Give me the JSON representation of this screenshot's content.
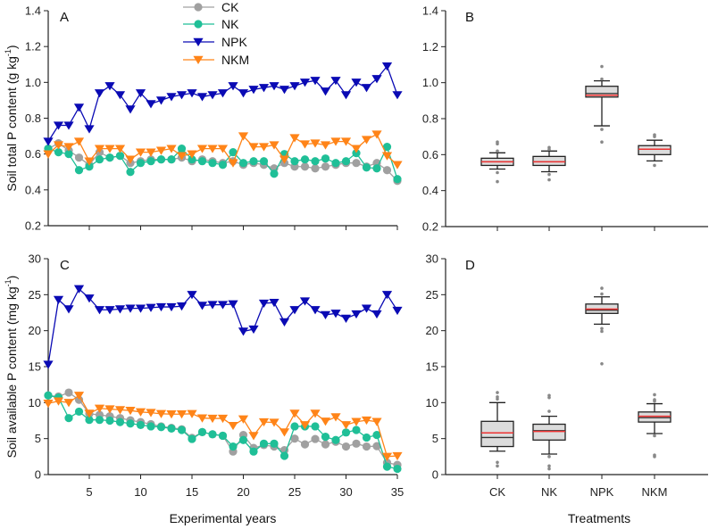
{
  "colors": {
    "CK": "#a0a0a0",
    "NK": "#1fbf97",
    "NPK": "#0a0ab4",
    "NKM": "#ff8418",
    "box_fill": "#dcdcdc",
    "mean_line": "#ee3333",
    "outlier": "#888888"
  },
  "legend": [
    {
      "name": "CK",
      "marker": "circle"
    },
    {
      "name": "NK",
      "marker": "circle"
    },
    {
      "name": "NPK",
      "marker": "triangle-down"
    },
    {
      "name": "NKM",
      "marker": "triangle-down"
    }
  ],
  "shared_labels": {
    "x_left": "Experimental years",
    "x_right": "Treatments"
  },
  "chart_data": [
    {
      "panel": "A",
      "type": "line",
      "ylabel": "Soil total P content (g kg-1)",
      "ylabel_main": "Soil total P content (g kg",
      "ylabel_sup": "-1",
      "ylabel_end": ")",
      "xlabel": "",
      "xlim": [
        1,
        35
      ],
      "ylim": [
        0.2,
        1.4
      ],
      "xticks": [
        5,
        10,
        15,
        20,
        25,
        30,
        35
      ],
      "yticks": [
        0.2,
        0.4,
        0.6,
        0.8,
        1.0,
        1.2,
        1.4
      ],
      "ytick_labels": [
        "0.2",
        "0.4",
        "0.6",
        "0.8",
        "1.0",
        "1.2",
        "1.4"
      ],
      "show_xtick_labels": false,
      "legend_position": "top-center",
      "x": [
        1,
        2,
        3,
        4,
        5,
        6,
        7,
        8,
        9,
        10,
        11,
        12,
        13,
        14,
        15,
        16,
        17,
        18,
        19,
        20,
        21,
        22,
        23,
        24,
        25,
        26,
        27,
        28,
        29,
        30,
        31,
        32,
        33,
        34,
        35
      ],
      "series": [
        {
          "name": "CK",
          "values": [
            0.63,
            0.66,
            0.62,
            0.58,
            0.54,
            0.61,
            0.58,
            0.59,
            0.55,
            0.56,
            0.57,
            0.57,
            0.57,
            0.58,
            0.56,
            0.57,
            0.56,
            0.55,
            0.56,
            0.54,
            0.55,
            0.54,
            0.52,
            0.55,
            0.53,
            0.53,
            0.52,
            0.53,
            0.54,
            0.55,
            0.55,
            0.53,
            0.55,
            0.51,
            0.45
          ]
        },
        {
          "name": "NK",
          "values": [
            0.63,
            0.61,
            0.6,
            0.51,
            0.53,
            0.57,
            0.58,
            0.59,
            0.5,
            0.55,
            0.56,
            0.57,
            0.57,
            0.63,
            0.57,
            0.56,
            0.55,
            0.54,
            0.61,
            0.55,
            0.56,
            0.56,
            0.49,
            0.6,
            0.56,
            0.57,
            0.56,
            0.575,
            0.55,
            0.56,
            0.605,
            0.525,
            0.52,
            0.64,
            0.46
          ]
        },
        {
          "name": "NPK",
          "values": [
            0.67,
            0.76,
            0.76,
            0.86,
            0.74,
            0.94,
            0.98,
            0.93,
            0.85,
            0.94,
            0.88,
            0.9,
            0.92,
            0.93,
            0.94,
            0.92,
            0.93,
            0.94,
            0.98,
            0.94,
            0.96,
            0.97,
            0.98,
            0.96,
            0.98,
            1.0,
            1.01,
            0.95,
            1.01,
            0.93,
            1.0,
            0.97,
            1.02,
            1.09,
            0.93
          ]
        },
        {
          "name": "NKM",
          "values": [
            0.6,
            0.65,
            0.64,
            0.67,
            0.56,
            0.63,
            0.63,
            0.63,
            0.57,
            0.61,
            0.61,
            0.62,
            0.63,
            0.59,
            0.6,
            0.63,
            0.63,
            0.63,
            0.55,
            0.7,
            0.64,
            0.64,
            0.65,
            0.57,
            0.69,
            0.655,
            0.66,
            0.65,
            0.67,
            0.67,
            0.63,
            0.68,
            0.71,
            0.59,
            0.54
          ]
        }
      ]
    },
    {
      "panel": "B",
      "type": "box",
      "ylim": [
        0.2,
        1.4
      ],
      "yticks": [
        0.2,
        0.4,
        0.6,
        0.8,
        1.0,
        1.2,
        1.4
      ],
      "ytick_labels": [
        "0.2",
        "0.4",
        "0.6",
        "0.8",
        "1.0",
        "1.2",
        "1.4"
      ],
      "categories": [
        "CK",
        "NK",
        "NPK",
        "NKM"
      ],
      "show_xtick_labels": false,
      "boxes": [
        {
          "name": "CK",
          "q1": 0.54,
          "q3": 0.58,
          "median": 0.56,
          "mean": 0.56,
          "whisker_low": 0.52,
          "whisker_high": 0.61,
          "outliers": [
            0.67,
            0.66,
            0.62,
            0.5,
            0.45
          ]
        },
        {
          "name": "NK",
          "q1": 0.54,
          "q3": 0.59,
          "median": 0.56,
          "mean": 0.56,
          "whisker_low": 0.505,
          "whisker_high": 0.62,
          "outliers": [
            0.64,
            0.63,
            0.49,
            0.46
          ]
        },
        {
          "name": "NPK",
          "q1": 0.92,
          "q3": 0.98,
          "median": 0.94,
          "mean": 0.93,
          "whisker_low": 0.76,
          "whisker_high": 1.01,
          "outliers": [
            1.09,
            1.02,
            0.74,
            0.67
          ]
        },
        {
          "name": "NKM",
          "q1": 0.6,
          "q3": 0.65,
          "median": 0.63,
          "mean": 0.63,
          "whisker_low": 0.565,
          "whisker_high": 0.68,
          "outliers": [
            0.71,
            0.7,
            0.54
          ]
        }
      ]
    },
    {
      "panel": "C",
      "type": "line",
      "ylabel": "Soil available P content (mg kg-1)",
      "ylabel_main": "Soil available P content (mg kg",
      "ylabel_sup": "-1",
      "ylabel_end": ")",
      "xlabel": "Experimental years",
      "xlim": [
        1,
        35
      ],
      "ylim": [
        0,
        30
      ],
      "xticks": [
        5,
        10,
        15,
        20,
        25,
        30,
        35
      ],
      "xtick_labels": [
        "5",
        "10",
        "15",
        "20",
        "25",
        "30",
        "35"
      ],
      "yticks": [
        0,
        5,
        10,
        15,
        20,
        25,
        30
      ],
      "ytick_labels": [
        "0",
        "5",
        "10",
        "15",
        "20",
        "25",
        "30"
      ],
      "x": [
        1,
        2,
        3,
        4,
        5,
        6,
        7,
        8,
        9,
        10,
        11,
        12,
        13,
        14,
        15,
        16,
        17,
        18,
        19,
        20,
        21,
        22,
        23,
        24,
        25,
        26,
        27,
        28,
        29,
        30,
        31,
        32,
        33,
        34,
        35
      ],
      "series": [
        {
          "name": "CK",
          "values": [
            11.0,
            10.85,
            11.4,
            10.4,
            8.45,
            8.3,
            8.1,
            7.85,
            7.55,
            7.3,
            7.0,
            6.7,
            6.5,
            6.3,
            5.1,
            5.9,
            5.6,
            5.4,
            3.2,
            5.5,
            3.7,
            4.1,
            3.9,
            3.4,
            5.0,
            4.2,
            4.95,
            4.2,
            4.55,
            3.9,
            4.3,
            3.9,
            3.95,
            1.65,
            1.35
          ]
        },
        {
          "name": "NK",
          "values": [
            11.0,
            10.7,
            7.85,
            8.75,
            7.6,
            7.6,
            7.5,
            7.3,
            7.1,
            6.9,
            6.7,
            6.6,
            6.4,
            6.2,
            4.95,
            5.9,
            5.6,
            5.4,
            3.9,
            4.8,
            3.2,
            4.3,
            4.3,
            2.6,
            6.7,
            6.7,
            6.7,
            5.25,
            4.8,
            5.85,
            6.2,
            5.15,
            5.5,
            1.1,
            0.8
          ]
        },
        {
          "name": "NPK",
          "values": [
            15.3,
            24.3,
            23.0,
            25.8,
            24.5,
            22.9,
            22.9,
            23.0,
            23.1,
            23.1,
            23.2,
            23.3,
            23.3,
            23.4,
            25.0,
            23.5,
            23.6,
            23.6,
            23.7,
            19.9,
            20.2,
            23.8,
            23.9,
            21.2,
            22.9,
            24.1,
            22.9,
            22.2,
            22.4,
            21.7,
            22.3,
            23.1,
            22.3,
            25.0,
            22.8
          ]
        },
        {
          "name": "NKM",
          "values": [
            9.9,
            10.2,
            10.0,
            11.0,
            8.5,
            9.2,
            9.1,
            9.0,
            8.9,
            8.7,
            8.6,
            8.45,
            8.4,
            8.4,
            8.45,
            7.85,
            7.8,
            7.8,
            6.8,
            7.7,
            5.4,
            7.3,
            7.25,
            5.9,
            8.5,
            6.9,
            8.5,
            7.4,
            8.0,
            6.9,
            7.35,
            7.55,
            7.35,
            2.5,
            2.6
          ]
        }
      ]
    },
    {
      "panel": "D",
      "type": "box",
      "xlabel": "Treatments",
      "ylim": [
        0,
        30
      ],
      "yticks": [
        0,
        5,
        10,
        15,
        20,
        25,
        30
      ],
      "ytick_labels": [
        "0",
        "5",
        "10",
        "15",
        "20",
        "25",
        "30"
      ],
      "categories": [
        "CK",
        "NK",
        "NPK",
        "NKM"
      ],
      "show_xtick_labels": true,
      "boxes": [
        {
          "name": "CK",
          "q1": 3.9,
          "q3": 7.4,
          "median": 5.15,
          "mean": 5.8,
          "whisker_low": 3.25,
          "whisker_high": 10.0,
          "outliers": [
            11.4,
            10.8,
            10.5,
            1.7,
            1.2
          ]
        },
        {
          "name": "NK",
          "q1": 4.8,
          "q3": 7.0,
          "median": 6.1,
          "mean": 6.0,
          "whisker_low": 2.85,
          "whisker_high": 8.1,
          "outliers": [
            11.0,
            10.7,
            8.8,
            2.5,
            1.2,
            0.8
          ]
        },
        {
          "name": "NPK",
          "q1": 22.4,
          "q3": 23.7,
          "median": 22.85,
          "mean": 23.0,
          "whisker_low": 20.9,
          "whisker_high": 24.7,
          "outliers": [
            25.9,
            25.1,
            20.3,
            19.9,
            15.4
          ]
        },
        {
          "name": "NKM",
          "q1": 7.3,
          "q3": 8.7,
          "median": 7.9,
          "mean": 8.1,
          "whisker_low": 5.7,
          "whisker_high": 9.85,
          "outliers": [
            11.1,
            10.4,
            10.2,
            5.4,
            2.7,
            2.5
          ]
        }
      ]
    }
  ]
}
